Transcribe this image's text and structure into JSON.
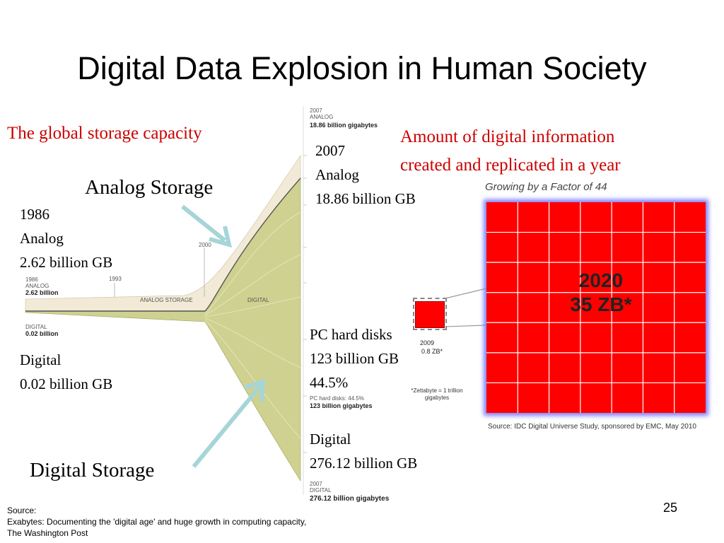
{
  "title": "Digital Data Explosion in Human Society",
  "left_heading": "The global storage capacity",
  "right_heading": [
    "Amount of  digital information",
    "created and replicated in a year"
  ],
  "analog_storage_label": "Analog Storage",
  "digital_storage_label": "Digital Storage",
  "left_1986": [
    "1986",
    "Analog",
    "2.62 billion GB"
  ],
  "left_digital": [
    "Digital",
    "0.02 billion GB"
  ],
  "mid_2007": [
    "2007",
    "Analog",
    "18.86 billion GB"
  ],
  "mid_pc": [
    "PC hard disks",
    "123 billion GB",
    "44.5%"
  ],
  "mid_digital": [
    "Digital",
    "276.12 billion GB"
  ],
  "chart_small": {
    "top_year": "2007",
    "top_type": "ANALOG",
    "top_value": "18.86 billion gigabytes",
    "left_year": "1986",
    "left_type": "ANALOG",
    "left_value": "2.62 billion",
    "left_digital_type": "DIGITAL",
    "left_digital_value": "0.02 billion",
    "year_1993": "1993",
    "year_2000": "2000",
    "band_analog": "ANALOG STORAGE",
    "band_digital": "DIGITAL",
    "pc_label": "PC hard disks: 44.5%",
    "pc_value": "123 billion gigabytes",
    "bottom_year": "2007",
    "bottom_type": "DIGITAL",
    "bottom_value": "276.12 billion gigabytes",
    "colors": {
      "analog": "#f2ead6",
      "digital": "#cfd190",
      "line": "#7a7a5a"
    }
  },
  "growth_caption": "Growing by a Factor of 44",
  "big_box": {
    "year": "2020",
    "value": "35 ZB*",
    "fill": "#ff0000",
    "rows": 7,
    "cols": 7
  },
  "small_box": {
    "year": "2009",
    "value": "0.8 ZB*"
  },
  "footnote": "*Zettabyte = 1 trillion gigabytes",
  "idc_source": "Source: IDC Digital Universe Study, sponsored by EMC, May 2010",
  "source": [
    "Source:",
    "Exabytes: Documenting the 'digital age' and huge growth in computing capacity,",
    "The Washington Post"
  ],
  "page_number": "25"
}
